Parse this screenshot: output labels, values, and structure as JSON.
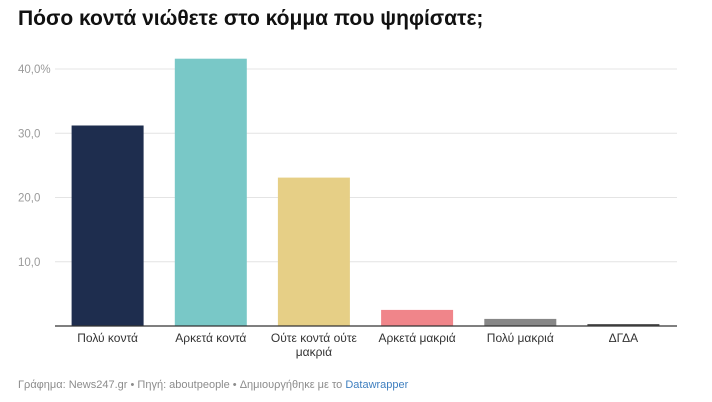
{
  "title": "Πόσο κοντά νιώθετε στο κόμμα που ψηφίσατε;",
  "footer": {
    "text": "Γράφημα: News247.gr • Πηγή: aboutpeople • Δημιουργήθηκε με το ",
    "link": "Datawrapper"
  },
  "chart_data": {
    "type": "bar",
    "title": "Πόσο κοντά νιώθετε στο κόμμα που ψηφίσατε;",
    "xlabel": "",
    "ylabel": "",
    "ylim": [
      0,
      40
    ],
    "yticks": [
      {
        "value": 40,
        "label": "40,0%"
      },
      {
        "value": 30,
        "label": "30,0"
      },
      {
        "value": 20,
        "label": "20,0"
      },
      {
        "value": 10,
        "label": "10,0"
      }
    ],
    "grid": true,
    "categories": [
      [
        "Πολύ κοντά"
      ],
      [
        "Αρκετά κοντά"
      ],
      [
        "Ούτε κοντά ούτε",
        "μακριά"
      ],
      [
        "Αρκετά μακριά"
      ],
      [
        "Πολύ μακριά"
      ],
      [
        "ΔΓΔΑ"
      ]
    ],
    "values": [
      31.2,
      41.6,
      23.1,
      2.5,
      1.1,
      0.3
    ],
    "colors": [
      "#1e2d4e",
      "#79c8c7",
      "#e6cf86",
      "#f0858a",
      "#878787",
      "#4a4a4a"
    ]
  }
}
